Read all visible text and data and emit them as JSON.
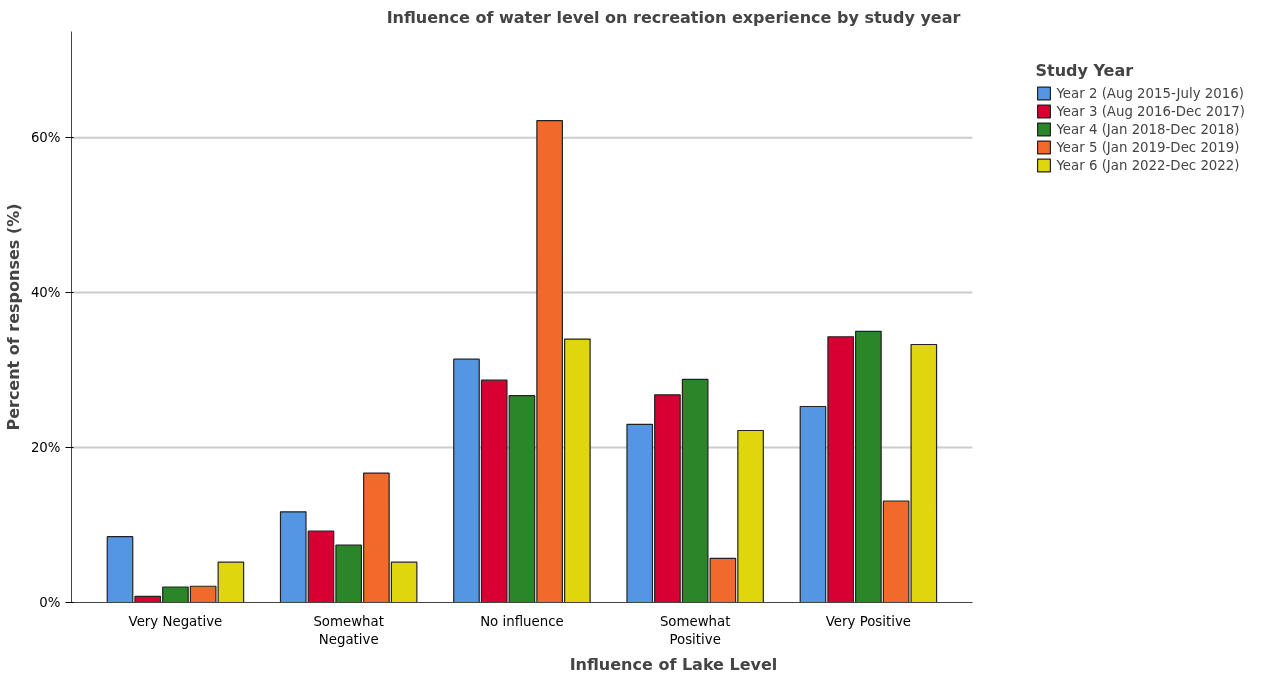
{
  "chart_data": {
    "type": "bar",
    "title": "Influence of water level on recreation experience by study year",
    "xlabel": "Influence of Lake Level",
    "ylabel": "Percent of responses (%)",
    "legend_title": "Study Year",
    "categories": [
      "Very Negative",
      "Somewhat\nNegative",
      "No influence",
      "Somewhat\nPositive",
      "Very Positive"
    ],
    "series": [
      {
        "name": "Year 2 (Aug 2015-July 2016)",
        "color": "#5596e3",
        "values": [
          8.5,
          11.7,
          31.4,
          23.0,
          25.3
        ]
      },
      {
        "name": "Year 3 (Aug 2016-Dec 2017)",
        "color": "#d60032",
        "values": [
          0.8,
          9.2,
          28.7,
          26.8,
          34.3
        ]
      },
      {
        "name": "Year 4 (Jan 2018-Dec 2018)",
        "color": "#2a8628",
        "values": [
          2.0,
          7.4,
          26.7,
          28.8,
          35.0
        ]
      },
      {
        "name": "Year 5 (Jan 2019-Dec 2019)",
        "color": "#f1692b",
        "values": [
          2.1,
          16.7,
          62.2,
          5.7,
          13.1
        ]
      },
      {
        "name": "Year 6 (Jan 2022-Dec 2022)",
        "color": "#e0d60e",
        "values": [
          5.2,
          5.2,
          34.0,
          22.2,
          33.3
        ]
      }
    ],
    "ylim": [
      0,
      73.7
    ],
    "yticks": [
      {
        "value": 0,
        "label": "0%"
      },
      {
        "value": 20,
        "label": "20%"
      },
      {
        "value": 40,
        "label": "40%"
      },
      {
        "value": 60,
        "label": "60%"
      }
    ],
    "grid": "y",
    "legend": "right"
  }
}
